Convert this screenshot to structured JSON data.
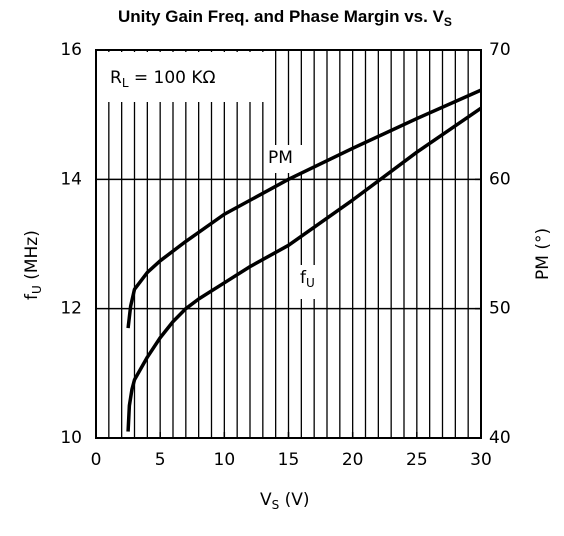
{
  "chart_data": {
    "type": "line",
    "title": {
      "text": "Unity Gain Freq. and Phase Margin vs. V",
      "sub": "S"
    },
    "xlabel": {
      "text": "V",
      "sub": "S",
      "tail": " (V)"
    },
    "ylabel": {
      "text": "f",
      "sub": "U",
      "tail": " (MHz)"
    },
    "y2label": "PM (°)",
    "annotations": {
      "rl": {
        "text": "R",
        "sub": "L",
        "tail": " = 100 KΩ"
      },
      "pm": "PM",
      "fu": {
        "text": "f",
        "sub": "U"
      }
    },
    "xlim": [
      0,
      30
    ],
    "xticks": [
      0,
      5,
      10,
      15,
      20,
      25,
      30
    ],
    "xgrid": [
      1,
      2,
      3,
      4,
      5,
      6,
      7,
      8,
      9,
      10,
      11,
      12,
      13,
      14,
      15,
      16,
      17,
      18,
      19,
      20,
      21,
      22,
      23,
      24,
      25,
      26,
      27,
      28,
      29
    ],
    "ylim": [
      10,
      16
    ],
    "yticks": [
      10,
      12,
      14,
      16
    ],
    "y2lim": [
      40,
      70
    ],
    "y2ticks": [
      40,
      50,
      60,
      70
    ],
    "grid": true,
    "series": [
      {
        "color": "#000000",
        "x": [
          2.5,
          2.6,
          2.8,
          3,
          4,
          5,
          6,
          7,
          8,
          10,
          12,
          15,
          20,
          25,
          30
        ],
        "values": [
          10.1,
          10.5,
          10.75,
          10.9,
          11.25,
          11.55,
          11.8,
          12.0,
          12.15,
          12.4,
          12.65,
          12.98,
          13.68,
          14.42,
          15.1
        ]
      },
      {
        "color": "#000000",
        "axis": "y2",
        "x": [
          2.5,
          2.7,
          3,
          4,
          5,
          7,
          10,
          15,
          20,
          25,
          30
        ],
        "values": [
          48.5,
          50.2,
          51.5,
          52.8,
          53.7,
          55.2,
          57.3,
          60.0,
          62.4,
          64.7,
          66.9
        ]
      }
    ]
  }
}
